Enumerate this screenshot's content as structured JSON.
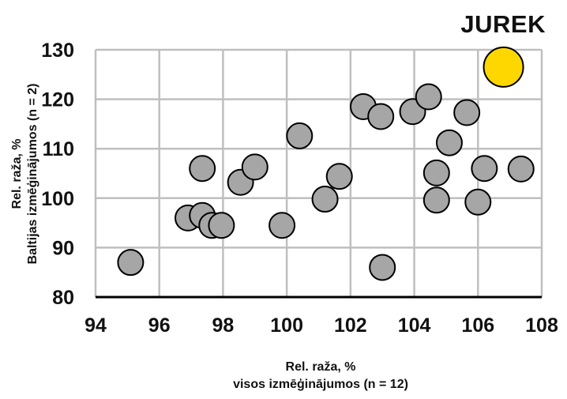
{
  "chart_data": {
    "type": "scatter",
    "title": "JUREK",
    "xlabel": [
      "Rel. raža, %",
      "visos izmēģinājumos (n = 12)"
    ],
    "ylabel": [
      "Rel. raža, %",
      "Baltijas izmēģinājumos (n = 2)"
    ],
    "xlim": [
      94,
      108
    ],
    "ylim": [
      80,
      130
    ],
    "x_ticks": [
      "94",
      "96",
      "98",
      "100",
      "102",
      "104",
      "106",
      "108"
    ],
    "y_ticks": [
      "80",
      "90",
      "100",
      "110",
      "120",
      "130"
    ],
    "grid": true,
    "colors": {
      "highlight": "#ffd700",
      "points": "#a6a6a6",
      "grid": "#bfbfbf",
      "axis": "#000000"
    },
    "highlight": {
      "name": "JUREK",
      "x": 106.8,
      "y": 126.5
    },
    "points": [
      {
        "x": 95.1,
        "y": 87
      },
      {
        "x": 96.9,
        "y": 96
      },
      {
        "x": 97.35,
        "y": 96.5
      },
      {
        "x": 97.35,
        "y": 106
      },
      {
        "x": 97.65,
        "y": 94.5
      },
      {
        "x": 97.95,
        "y": 94.5
      },
      {
        "x": 98.55,
        "y": 103.2
      },
      {
        "x": 99.0,
        "y": 106.3
      },
      {
        "x": 99.85,
        "y": 94.5
      },
      {
        "x": 100.4,
        "y": 112.6
      },
      {
        "x": 101.2,
        "y": 99.8
      },
      {
        "x": 101.65,
        "y": 104.4
      },
      {
        "x": 102.4,
        "y": 118.5
      },
      {
        "x": 102.95,
        "y": 116.5
      },
      {
        "x": 103.0,
        "y": 86
      },
      {
        "x": 103.95,
        "y": 117.5
      },
      {
        "x": 104.45,
        "y": 120.5
      },
      {
        "x": 104.7,
        "y": 105.1
      },
      {
        "x": 104.7,
        "y": 99.6
      },
      {
        "x": 105.1,
        "y": 111.2
      },
      {
        "x": 105.65,
        "y": 117.3
      },
      {
        "x": 106.0,
        "y": 99.2
      },
      {
        "x": 106.2,
        "y": 106
      },
      {
        "x": 107.35,
        "y": 105.9
      }
    ]
  }
}
